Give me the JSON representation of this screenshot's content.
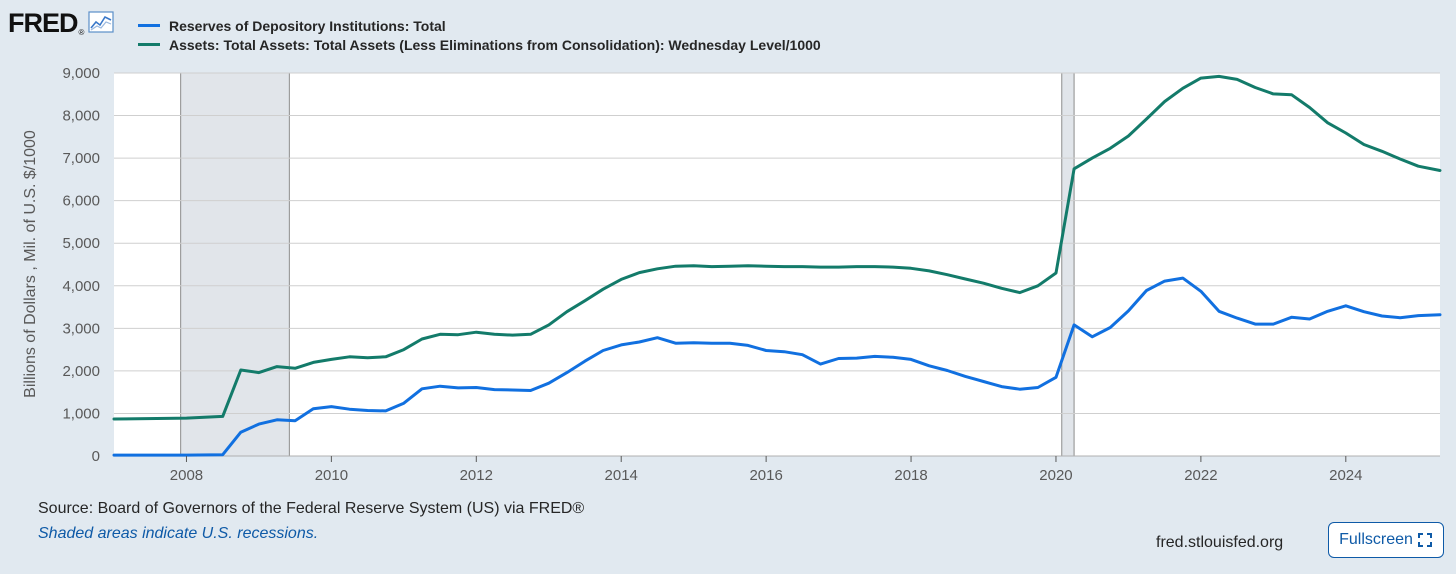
{
  "header": {
    "logo_text": "FRED",
    "logo_mark": "®"
  },
  "legend": [
    {
      "label": "Reserves of Depository Institutions: Total",
      "color": "#1170e0"
    },
    {
      "label": "Assets: Total Assets: Total Assets (Less Eliminations from Consolidation): Wednesday Level/1000",
      "color": "#137b6a"
    }
  ],
  "footer": {
    "source": "Source: Board of Governors of the Federal Reserve System (US) via FRED®",
    "shaded_note": "Shaded areas indicate U.S. recessions.",
    "site": "fred.stlouisfed.org",
    "fullscreen_label": "Fullscreen"
  },
  "chart_data": {
    "type": "line",
    "title": "",
    "xlabel": "",
    "ylabel": "Billions of Dollars , Mil. of U.S. $/1000",
    "xlim": [
      2007.0,
      2025.3
    ],
    "ylim": [
      0,
      9000
    ],
    "x_ticks": [
      2008,
      2010,
      2012,
      2014,
      2016,
      2018,
      2020,
      2022,
      2024
    ],
    "x_tick_labels": [
      "2008",
      "2010",
      "2012",
      "2014",
      "2016",
      "2018",
      "2020",
      "2022",
      "2024"
    ],
    "y_ticks": [
      0,
      1000,
      2000,
      3000,
      4000,
      5000,
      6000,
      7000,
      8000,
      9000
    ],
    "y_tick_labels": [
      "0",
      "1,000",
      "2,000",
      "3,000",
      "4,000",
      "5,000",
      "6,000",
      "7,000",
      "8,000",
      "9,000"
    ],
    "recessions": [
      [
        2007.92,
        2009.42
      ],
      [
        2020.08,
        2020.25
      ]
    ],
    "series": [
      {
        "name": "Reserves of Depository Institutions: Total",
        "color": "#1170e0",
        "x": [
          2007.0,
          2008.0,
          2008.5,
          2008.75,
          2009.0,
          2009.25,
          2009.5,
          2009.75,
          2010.0,
          2010.25,
          2010.5,
          2010.75,
          2011.0,
          2011.25,
          2011.5,
          2011.75,
          2012.0,
          2012.25,
          2012.5,
          2012.75,
          2013.0,
          2013.25,
          2013.5,
          2013.75,
          2014.0,
          2014.25,
          2014.5,
          2014.75,
          2015.0,
          2015.25,
          2015.5,
          2015.75,
          2016.0,
          2016.25,
          2016.5,
          2016.75,
          2017.0,
          2017.25,
          2017.5,
          2017.75,
          2018.0,
          2018.25,
          2018.5,
          2018.75,
          2019.0,
          2019.25,
          2019.5,
          2019.75,
          2020.0,
          2020.25,
          2020.5,
          2020.75,
          2021.0,
          2021.25,
          2021.5,
          2021.75,
          2022.0,
          2022.25,
          2022.5,
          2022.75,
          2023.0,
          2023.25,
          2023.5,
          2023.75,
          2024.0,
          2024.25,
          2024.5,
          2024.75,
          2025.0,
          2025.3
        ],
        "values": [
          20,
          20,
          30,
          560,
          750,
          850,
          830,
          1110,
          1160,
          1100,
          1070,
          1060,
          1240,
          1580,
          1640,
          1600,
          1610,
          1560,
          1550,
          1540,
          1710,
          1960,
          2230,
          2480,
          2610,
          2680,
          2780,
          2650,
          2660,
          2650,
          2650,
          2600,
          2480,
          2450,
          2380,
          2160,
          2290,
          2300,
          2340,
          2320,
          2270,
          2120,
          2010,
          1870,
          1750,
          1630,
          1570,
          1610,
          1850,
          3080,
          2800,
          3020,
          3410,
          3890,
          4110,
          4180,
          3870,
          3400,
          3240,
          3100,
          3100,
          3260,
          3220,
          3400,
          3530,
          3390,
          3290,
          3250,
          3300,
          3320
        ]
      },
      {
        "name": "Assets: Total Assets: Total Assets (Less Eliminations from Consolidation): Wednesday Level/1000",
        "color": "#137b6a",
        "x": [
          2007.0,
          2008.0,
          2008.5,
          2008.75,
          2009.0,
          2009.25,
          2009.5,
          2009.75,
          2010.0,
          2010.25,
          2010.5,
          2010.75,
          2011.0,
          2011.25,
          2011.5,
          2011.75,
          2012.0,
          2012.25,
          2012.5,
          2012.75,
          2013.0,
          2013.25,
          2013.5,
          2013.75,
          2014.0,
          2014.25,
          2014.5,
          2014.75,
          2015.0,
          2015.25,
          2015.5,
          2015.75,
          2016.0,
          2016.25,
          2016.5,
          2016.75,
          2017.0,
          2017.25,
          2017.5,
          2017.75,
          2018.0,
          2018.25,
          2018.5,
          2018.75,
          2019.0,
          2019.25,
          2019.5,
          2019.75,
          2020.0,
          2020.25,
          2020.5,
          2020.75,
          2021.0,
          2021.25,
          2021.5,
          2021.75,
          2022.0,
          2022.25,
          2022.5,
          2022.75,
          2023.0,
          2023.25,
          2023.5,
          2023.75,
          2024.0,
          2024.25,
          2024.5,
          2024.75,
          2025.0,
          2025.3
        ],
        "values": [
          870,
          890,
          930,
          2020,
          1960,
          2100,
          2060,
          2200,
          2270,
          2330,
          2310,
          2330,
          2500,
          2750,
          2860,
          2850,
          2910,
          2860,
          2840,
          2860,
          3080,
          3390,
          3650,
          3920,
          4150,
          4310,
          4400,
          4460,
          4470,
          4450,
          4460,
          4470,
          4460,
          4450,
          4450,
          4440,
          4440,
          4450,
          4450,
          4440,
          4410,
          4350,
          4260,
          4160,
          4060,
          3940,
          3840,
          4000,
          4300,
          6750,
          7000,
          7230,
          7520,
          7920,
          8330,
          8640,
          8880,
          8920,
          8850,
          8660,
          8510,
          8490,
          8190,
          7830,
          7590,
          7320,
          7160,
          6980,
          6810,
          6710
        ]
      }
    ]
  }
}
